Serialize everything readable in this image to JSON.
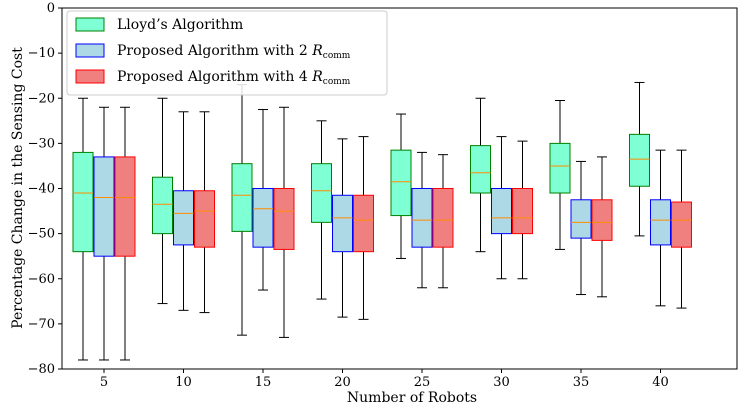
{
  "chart_data": {
    "type": "boxplot",
    "xlabel": "Number of Robots",
    "ylabel": "Percentage Change in the Sensing Cost",
    "ylim": [
      -80,
      0
    ],
    "yticks": [
      0,
      -10,
      -20,
      -30,
      -40,
      -50,
      -60,
      -70,
      -80
    ],
    "y_tick_labels": [
      "0",
      "−10",
      "−20",
      "−30",
      "−40",
      "−50",
      "−60",
      "−70",
      "−80"
    ],
    "categories": [
      "5",
      "10",
      "15",
      "20",
      "25",
      "30",
      "35",
      "40"
    ],
    "grid": false,
    "legend_position": "top-left",
    "series": [
      {
        "name": "Lloyd’s Algorithm",
        "legend_main": "Lloyd’s Algorithm",
        "legend_sym": "",
        "legend_sub": "",
        "fill": "#7fffd4",
        "edge": "#008000",
        "boxes": [
          {
            "whislo": -78,
            "q1": -54,
            "med": -41,
            "q3": -32,
            "whishi": -20
          },
          {
            "whislo": -65.5,
            "q1": -50,
            "med": -43.5,
            "q3": -37.5,
            "whishi": -20
          },
          {
            "whislo": -72.5,
            "q1": -49.5,
            "med": -41.5,
            "q3": -34.5,
            "whishi": -17
          },
          {
            "whislo": -64.5,
            "q1": -47.5,
            "med": -40.5,
            "q3": -34.5,
            "whishi": -25
          },
          {
            "whislo": -55.5,
            "q1": -46,
            "med": -38.5,
            "q3": -31.5,
            "whishi": -23.5
          },
          {
            "whislo": -54,
            "q1": -41,
            "med": -36.5,
            "q3": -30.5,
            "whishi": -20
          },
          {
            "whislo": -53.5,
            "q1": -41,
            "med": -35,
            "q3": -30,
            "whishi": -20.5
          },
          {
            "whislo": -50.5,
            "q1": -39.5,
            "med": -33.5,
            "q3": -28,
            "whishi": -16.5
          }
        ]
      },
      {
        "name": "Proposed Algorithm with 2 Rcomm",
        "legend_main": "Proposed Algorithm with 2 ",
        "legend_sym": "R",
        "legend_sub": "comm",
        "fill": "#add8e6",
        "edge": "#0000ff",
        "boxes": [
          {
            "whislo": -78,
            "q1": -55,
            "med": -42,
            "q3": -33,
            "whishi": -22
          },
          {
            "whislo": -67,
            "q1": -52.5,
            "med": -45.5,
            "q3": -40.5,
            "whishi": -23
          },
          {
            "whislo": -62.5,
            "q1": -53,
            "med": -44.5,
            "q3": -40,
            "whishi": -22.5
          },
          {
            "whislo": -68.5,
            "q1": -54,
            "med": -46.5,
            "q3": -41.5,
            "whishi": -29
          },
          {
            "whislo": -62,
            "q1": -53,
            "med": -47,
            "q3": -40,
            "whishi": -32
          },
          {
            "whislo": -60,
            "q1": -50,
            "med": -46.5,
            "q3": -40,
            "whishi": -28.5
          },
          {
            "whislo": -63.5,
            "q1": -51,
            "med": -47.5,
            "q3": -42.5,
            "whishi": -34
          },
          {
            "whislo": -66,
            "q1": -52.5,
            "med": -47,
            "q3": -42.5,
            "whishi": -31.5
          }
        ]
      },
      {
        "name": "Proposed Algorithm with 4 Rcomm",
        "legend_main": "Proposed Algorithm with 4 ",
        "legend_sym": "R",
        "legend_sub": "comm",
        "fill": "#f08080",
        "edge": "#ff0000",
        "boxes": [
          {
            "whislo": -78,
            "q1": -55,
            "med": -42,
            "q3": -33,
            "whishi": -22
          },
          {
            "whislo": -67.5,
            "q1": -53,
            "med": -45,
            "q3": -40.5,
            "whishi": -23
          },
          {
            "whislo": -73,
            "q1": -53.5,
            "med": -45,
            "q3": -40,
            "whishi": -22
          },
          {
            "whislo": -69,
            "q1": -54,
            "med": -47,
            "q3": -41.5,
            "whishi": -28.5
          },
          {
            "whislo": -62,
            "q1": -53,
            "med": -47,
            "q3": -40,
            "whishi": -32.5
          },
          {
            "whislo": -60,
            "q1": -50,
            "med": -46.5,
            "q3": -40,
            "whishi": -29.5
          },
          {
            "whislo": -64,
            "q1": -51.5,
            "med": -47.5,
            "q3": -42.5,
            "whishi": -33
          },
          {
            "whislo": -66.5,
            "q1": -53,
            "med": -47,
            "q3": -43,
            "whishi": -31.5
          }
        ]
      }
    ],
    "median_color": "#ff8c00"
  }
}
